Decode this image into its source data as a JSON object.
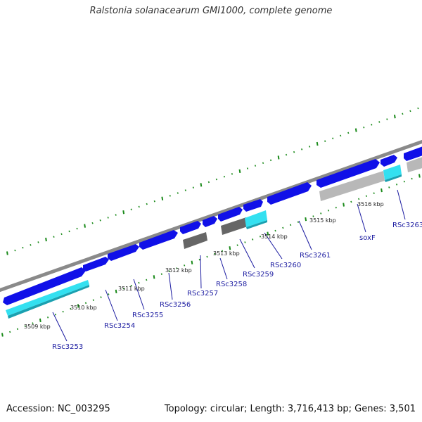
{
  "title": "Ralstonia solanacearum GMI1000, complete genome",
  "footer": {
    "accession": "Accession: NC_003295",
    "summary": "Topology: circular; Length: 3,716,413 bp; Genes: 3,501"
  },
  "colors": {
    "background": "#ffffff",
    "backbone": "#8a8a8a",
    "gene_forward": "#1010e8",
    "gene_light": "#33e0f0",
    "gene_pseudo": "#666666",
    "gene_other": "#b8b8b8",
    "tick": "#1a8a1a",
    "label": "#1a1aa0",
    "kbp_label": "#222222"
  },
  "map": {
    "kbp_labels": [
      "3509 kbp",
      "3510 kbp",
      "3511 kbp",
      "3512 kbp",
      "3513 kbp",
      "3514 kbp",
      "3515 kbp",
      "3516 kbp"
    ],
    "genes": [
      {
        "label": "RSc3253",
        "strand": "+",
        "type": "cds"
      },
      {
        "label": "RSc3254",
        "strand": "+",
        "type": "cds"
      },
      {
        "label": "RSc3255",
        "strand": "+",
        "type": "cds"
      },
      {
        "label": "RSc3256",
        "strand": "+",
        "type": "cds"
      },
      {
        "label": "RSc3257",
        "strand": "-",
        "type": "pseudo"
      },
      {
        "label": "RSc3258",
        "strand": "+",
        "type": "cds"
      },
      {
        "label": "RSc3259",
        "strand": "-",
        "type": "pseudo"
      },
      {
        "label": "RSc3260",
        "strand": "+",
        "type": "cds"
      },
      {
        "label": "RSc3261",
        "strand": "+",
        "type": "cds"
      },
      {
        "label": "soxF",
        "strand": "-",
        "type": "other"
      },
      {
        "label": "RSc3263",
        "strand": "+",
        "type": "cds"
      }
    ]
  }
}
